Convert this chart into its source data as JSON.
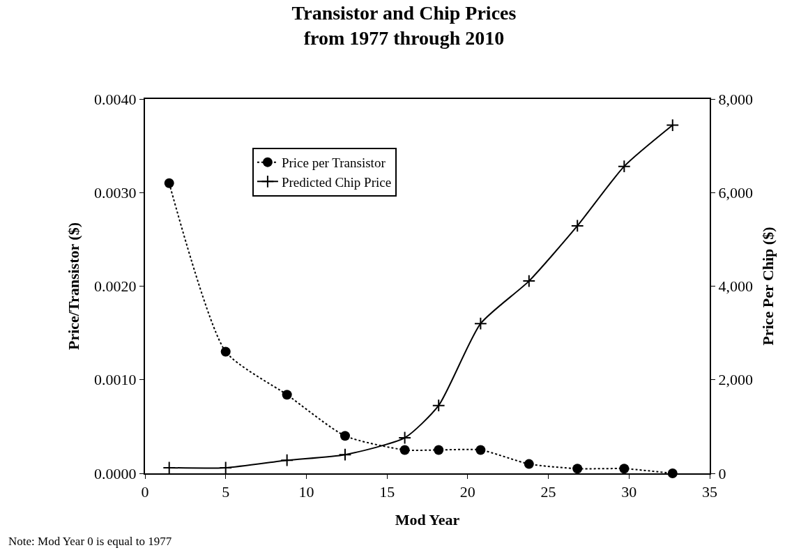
{
  "chart_data": {
    "type": "line",
    "title": "Transistor and Chip Prices\nfrom 1977 through 2010",
    "xlabel": "Mod Year",
    "ylabel": "Price/Transistor ($)",
    "y2label": "Price Per Chip ($)",
    "x": [
      1.5,
      5,
      8.8,
      12.4,
      16.1,
      18.2,
      20.8,
      23.8,
      26.8,
      29.7,
      32.7
    ],
    "series": [
      {
        "name": "Price per Transistor",
        "color": "#000000",
        "marker": "circle",
        "line_style": "dotted",
        "values": [
          0.0031,
          0.0013,
          0.00084,
          0.0004,
          0.00025,
          0.00025,
          0.00025,
          0.0001,
          5e-05,
          5e-05,
          0.0
        ]
      },
      {
        "name": "Predicted Chip Price",
        "color": "#000000",
        "marker": "cross",
        "line_style": "solid",
        "axis": "y2",
        "values": [
          120,
          120,
          280,
          400,
          760,
          1450,
          3200,
          4110,
          5290,
          6560,
          7440
        ]
      }
    ],
    "xlim": [
      0,
      35
    ],
    "xticks": [
      0,
      5,
      10,
      15,
      20,
      25,
      30,
      35
    ],
    "ylim": [
      0,
      0.004
    ],
    "yticks": [
      {
        "value": 0,
        "label": "0.0000"
      },
      {
        "value": 0.001,
        "label": "0.0010"
      },
      {
        "value": 0.002,
        "label": "0.0020"
      },
      {
        "value": 0.003,
        "label": "0.0030"
      },
      {
        "value": 0.004,
        "label": "0.0040"
      }
    ],
    "y2lim": [
      0,
      8000
    ],
    "y2ticks": [
      0,
      {
        "value": 2000,
        "label": "2,000"
      },
      {
        "value": 4000,
        "label": "4,000"
      },
      {
        "value": 6000,
        "label": "6,000"
      },
      {
        "value": 8000,
        "label": "8,000"
      }
    ],
    "legend": "top left",
    "annotations": [
      "Note: Mod Year 0 is equal to 1977"
    ]
  }
}
